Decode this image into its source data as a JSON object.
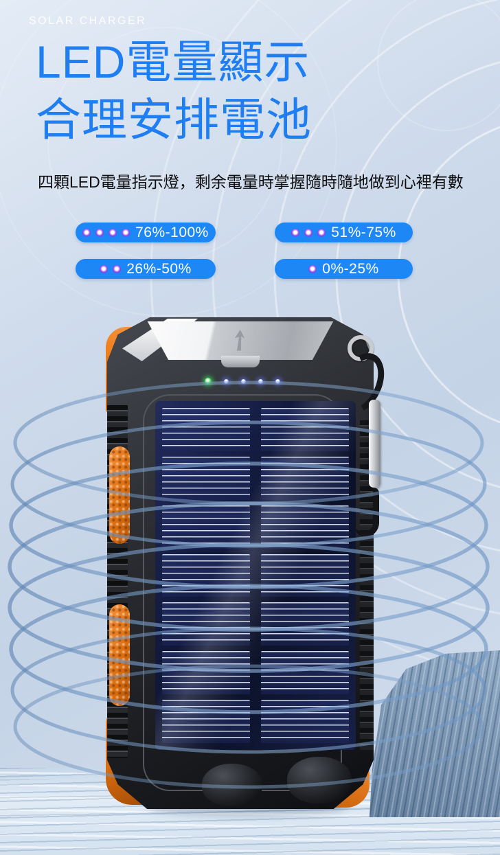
{
  "page": {
    "eyebrow": "SOLAR CHARGER",
    "title_line1": "LED電量顯示",
    "title_line2": "合理安排電池",
    "subtitle": "四顆LED電量指示燈，剩余電量時掌握隨時隨地做到心裡有數"
  },
  "battery_levels": [
    {
      "label": "76%-100%",
      "led_count": 4
    },
    {
      "label": "51%-75%",
      "led_count": 3
    },
    {
      "label": "26%-50%",
      "led_count": 2
    },
    {
      "label": "0%-25%",
      "led_count": 1
    }
  ],
  "device": {
    "name": "solar charger power bank",
    "status_leds": {
      "green_count": 1,
      "blue_count": 4
    },
    "features_shown": [
      "solar panel",
      "power button",
      "carabiner clip",
      "orange rubber grips",
      "LED charge indicators"
    ]
  },
  "icons": {
    "power": "power-icon",
    "compass_arrow": "compass-arrow-icon",
    "led_dot": "led-dot-icon"
  },
  "colors": {
    "title_blue": "#1e7ef2",
    "pill_blue": "#1d87f6",
    "led_dot_purple": "#8a35f0",
    "accent_orange": "#ee7d1a",
    "coil_ring_blue": "#7fa3cc",
    "solar_panel_navy": "#121a3e",
    "device_body_dark": "#26282c",
    "background_light_blue": "#cdd9ea"
  }
}
